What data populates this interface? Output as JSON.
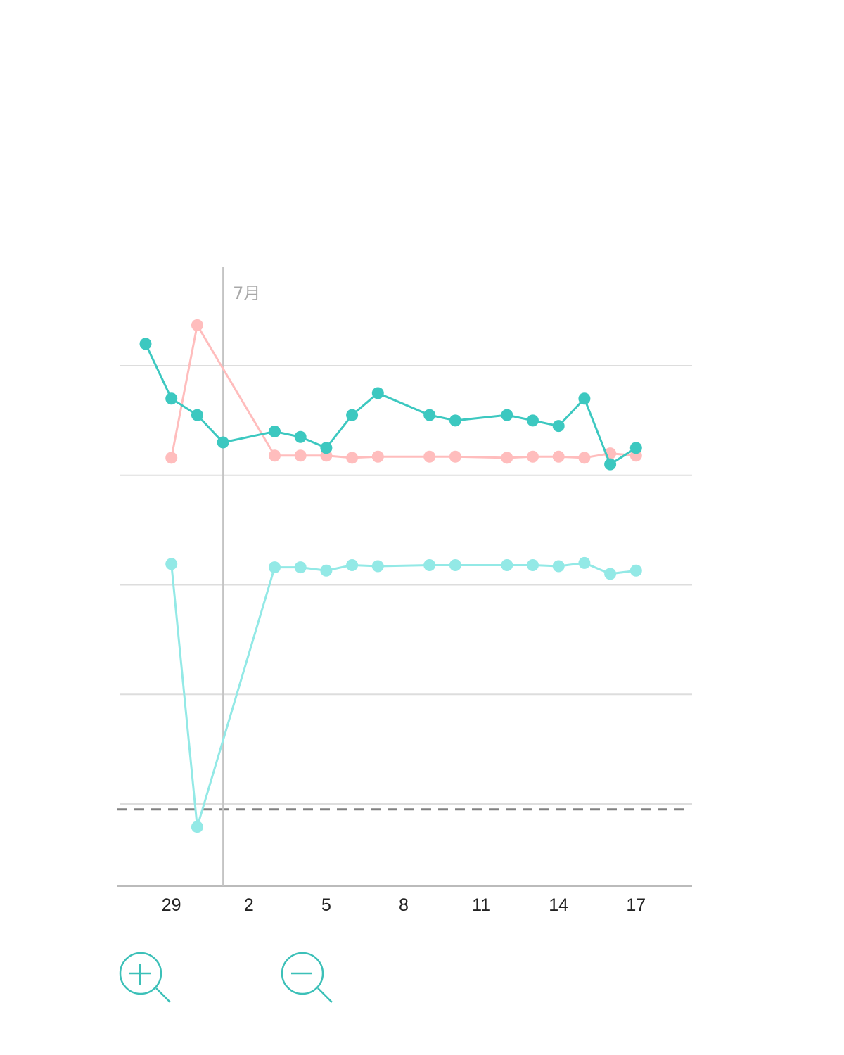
{
  "chart_data": {
    "type": "line",
    "title": "",
    "xlabel": "",
    "ylabel": "",
    "month_marker": {
      "date": "7/1",
      "label": "7月"
    },
    "x_ticks": [
      {
        "date": "6/29",
        "label": "29"
      },
      {
        "date": "7/2",
        "label": "2"
      },
      {
        "date": "7/5",
        "label": "5"
      },
      {
        "date": "7/8",
        "label": "8"
      },
      {
        "date": "7/11",
        "label": "11"
      },
      {
        "date": "7/14",
        "label": "14"
      },
      {
        "date": "7/17",
        "label": "17"
      }
    ],
    "xlim": [
      "6/27",
      "7/19"
    ],
    "ylim": [
      -0.75,
      4.9
    ],
    "y_gridlines": [
      0,
      1,
      2,
      3,
      4
    ],
    "y_axis_labels_shown": false,
    "grid": true,
    "reference_line": {
      "value": -0.05,
      "style": "dashed",
      "color": "#808080"
    },
    "series": [
      {
        "color": "#3cc8c0",
        "points": [
          [
            "6/28",
            4.2
          ],
          [
            "6/29",
            3.7
          ],
          [
            "6/30",
            3.55
          ],
          [
            "7/1",
            3.3
          ],
          [
            "7/3",
            3.4
          ],
          [
            "7/4",
            3.35
          ],
          [
            "7/5",
            3.25
          ],
          [
            "7/6",
            3.55
          ],
          [
            "7/7",
            3.75
          ],
          [
            "7/9",
            3.55
          ],
          [
            "7/10",
            3.5
          ],
          [
            "7/12",
            3.55
          ],
          [
            "7/13",
            3.5
          ],
          [
            "7/14",
            3.45
          ],
          [
            "7/15",
            3.7
          ],
          [
            "7/16",
            3.1
          ],
          [
            "7/17",
            3.25
          ]
        ]
      },
      {
        "color": "#ffbdbd",
        "points": [
          [
            "6/29",
            3.16
          ],
          [
            "6/30",
            4.37
          ],
          [
            "7/3",
            3.18
          ],
          [
            "7/4",
            3.18
          ],
          [
            "7/5",
            3.18
          ],
          [
            "7/6",
            3.16
          ],
          [
            "7/7",
            3.17
          ],
          [
            "7/9",
            3.17
          ],
          [
            "7/10",
            3.17
          ],
          [
            "7/12",
            3.16
          ],
          [
            "7/13",
            3.17
          ],
          [
            "7/14",
            3.17
          ],
          [
            "7/15",
            3.16
          ],
          [
            "7/16",
            3.2
          ],
          [
            "7/17",
            3.18
          ]
        ]
      },
      {
        "color": "#93e9e6",
        "points": [
          [
            "6/29",
            2.19
          ],
          [
            "6/30",
            -0.21
          ],
          [
            "7/3",
            2.16
          ],
          [
            "7/4",
            2.16
          ],
          [
            "7/5",
            2.13
          ],
          [
            "7/6",
            2.18
          ],
          [
            "7/7",
            2.17
          ],
          [
            "7/9",
            2.18
          ],
          [
            "7/10",
            2.18
          ],
          [
            "7/12",
            2.18
          ],
          [
            "7/13",
            2.18
          ],
          [
            "7/14",
            2.17
          ],
          [
            "7/15",
            2.2
          ],
          [
            "7/16",
            2.1
          ],
          [
            "7/17",
            2.13
          ]
        ]
      }
    ]
  },
  "controls": {
    "zoom_in_icon": "zoom-in-magnifier-icon",
    "zoom_out_icon": "zoom-out-magnifier-icon",
    "accent_color": "#3cc0b8"
  }
}
